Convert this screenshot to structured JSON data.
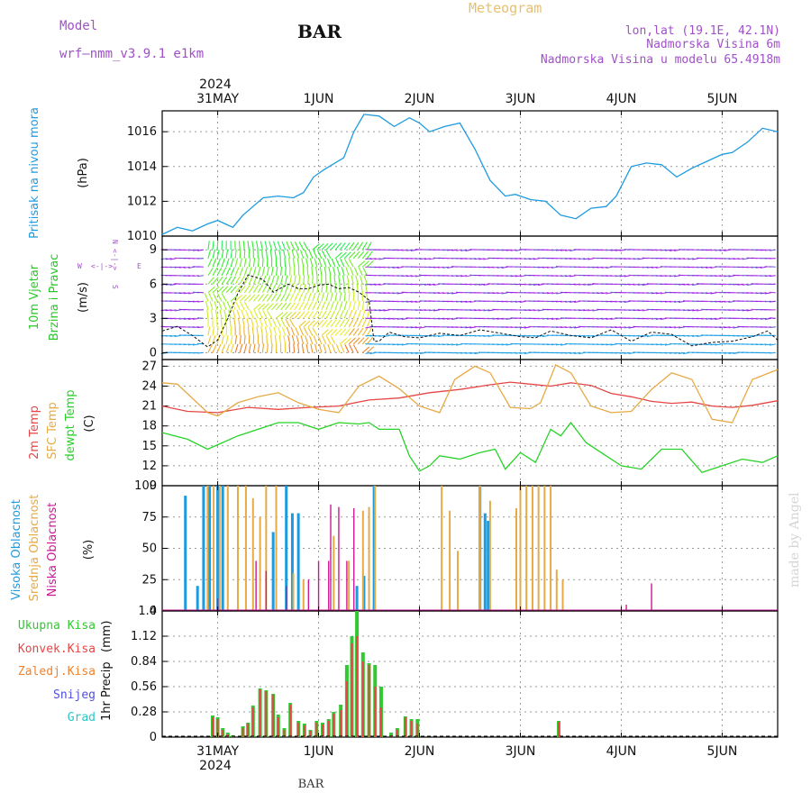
{
  "header": {
    "model_label": "Model",
    "model_name": "wrf–nmm_v3.9.1 e1km",
    "station": "BAR",
    "title": "Meteogram",
    "coords": "lon,lat (19.1E, 42.1N)",
    "elev": "Nadmorska Visina 6m",
    "elev_model": "Nadmorska Visina u modelu 65.4918m",
    "watermark": "made by Angel",
    "footer": "BAR"
  },
  "time_axis": {
    "year": "2024",
    "labels": [
      "31MAY",
      "1JUN",
      "2JUN",
      "3JUN",
      "4JUN",
      "5JUN"
    ],
    "start_day": 30.45,
    "end_day": 36.55
  },
  "colors": {
    "pressure": "#1e9be0",
    "temp2m": "#e64646",
    "sfc": "#e6aa46",
    "dewpt": "#28d228",
    "high": "#1e9be0",
    "mid": "#e6aa46",
    "low": "#cc1896",
    "total": "#32c832",
    "conv": "#e64646",
    "frz": "#f0822d",
    "snow": "#5050dc",
    "grad": "#28c8c8",
    "wind_label": "#28c828",
    "compass": "#a050c8"
  },
  "chart_data": [
    {
      "type": "line",
      "panel": "pressure",
      "ylabel_1": "Pritisak na nivou mora",
      "ylabel_2": "(hPa)",
      "ylim": [
        1010,
        1017.2
      ],
      "yticks": [
        1010,
        1012,
        1014,
        1016
      ],
      "grid": true,
      "series": [
        {
          "x": [
            30.45,
            30.6,
            30.75,
            30.9,
            31.0,
            31.15,
            31.25,
            31.45,
            31.6,
            31.75,
            31.85,
            31.95,
            32.05,
            32.25,
            32.35,
            32.45,
            32.6,
            32.75,
            32.9,
            33.0,
            33.1,
            33.25,
            33.4,
            33.55,
            33.7,
            33.85,
            33.95,
            34.1,
            34.25,
            34.4,
            34.55,
            34.7,
            34.85,
            34.95,
            35.1,
            35.25,
            35.4,
            35.55,
            35.7,
            35.85,
            36.0,
            36.1,
            36.25,
            36.4,
            36.55
          ],
          "y": [
            1010.1,
            1010.5,
            1010.3,
            1010.7,
            1010.9,
            1010.5,
            1011.2,
            1012.2,
            1012.3,
            1012.2,
            1012.5,
            1013.4,
            1013.8,
            1014.5,
            1016.0,
            1017.0,
            1016.9,
            1016.3,
            1016.8,
            1016.5,
            1016.0,
            1016.3,
            1016.5,
            1015.0,
            1013.2,
            1012.3,
            1012.4,
            1012.1,
            1012.0,
            1011.2,
            1011.0,
            1011.6,
            1011.7,
            1012.3,
            1014.0,
            1014.2,
            1014.1,
            1013.4,
            1013.9,
            1014.3,
            1014.7,
            1014.8,
            1015.4,
            1016.2,
            1016.0
          ]
        }
      ]
    },
    {
      "type": "line",
      "panel": "wind",
      "ylabel_1": "10m Vjetar",
      "ylabel_2": "Brzina i Pravac",
      "ylabel_3": "(m/s)",
      "compass": [
        "N",
        "S",
        "W",
        "E"
      ],
      "ylim": [
        -0.6,
        10.2
      ],
      "yticks": [
        0,
        3,
        6,
        9
      ],
      "grid": true,
      "series": [
        {
          "name": "speed",
          "x": [
            30.45,
            30.6,
            30.75,
            30.9,
            31.0,
            31.1,
            31.2,
            31.3,
            31.45,
            31.55,
            31.7,
            31.8,
            31.9,
            32.0,
            32.1,
            32.2,
            32.3,
            32.4,
            32.5,
            32.55,
            32.6,
            32.7,
            32.85,
            33.0,
            33.2,
            33.4,
            33.6,
            33.8,
            34.0,
            34.15,
            34.3,
            34.5,
            34.7,
            34.9,
            35.1,
            35.3,
            35.5,
            35.7,
            35.9,
            36.1,
            36.3,
            36.45,
            36.55
          ],
          "y": [
            1.9,
            2.3,
            1.5,
            0.5,
            1.1,
            3.0,
            5.2,
            6.8,
            6.4,
            5.3,
            6.0,
            5.6,
            5.6,
            5.9,
            6.0,
            5.6,
            5.7,
            5.3,
            4.6,
            1.0,
            1.0,
            1.8,
            1.4,
            1.3,
            1.7,
            1.5,
            2.0,
            1.7,
            1.4,
            1.3,
            1.9,
            1.5,
            1.3,
            2.0,
            1.0,
            1.8,
            1.6,
            0.6,
            0.9,
            1.0,
            1.4,
            1.9,
            1.1
          ]
        }
      ]
    },
    {
      "type": "line",
      "panel": "temperature",
      "ylabel_1": "2m Temp",
      "ylabel_2": "SFC Temp",
      "ylabel_3": "dewpt Temp",
      "ylabel_4": "(C)",
      "ylim": [
        9,
        28
      ],
      "yticks": [
        9,
        12,
        15,
        18,
        21,
        24,
        27
      ],
      "grid": true,
      "series": [
        {
          "name": "2m Temp",
          "x": [
            30.45,
            30.7,
            31.0,
            31.3,
            31.6,
            31.9,
            32.2,
            32.5,
            32.8,
            33.1,
            33.4,
            33.7,
            33.9,
            34.1,
            34.3,
            34.5,
            34.7,
            34.9,
            35.1,
            35.3,
            35.5,
            35.7,
            35.9,
            36.1,
            36.3,
            36.55
          ],
          "y": [
            21.0,
            20.2,
            20.0,
            20.8,
            20.5,
            20.8,
            21.0,
            21.9,
            22.2,
            23.0,
            23.5,
            24.2,
            24.6,
            24.3,
            24.0,
            24.5,
            24.1,
            22.9,
            22.4,
            21.7,
            21.4,
            21.6,
            21.0,
            20.8,
            21.1,
            21.8
          ]
        },
        {
          "name": "SFC Temp",
          "x": [
            30.45,
            30.6,
            30.9,
            31.0,
            31.2,
            31.4,
            31.6,
            31.8,
            32.0,
            32.2,
            32.4,
            32.6,
            32.8,
            33.0,
            33.2,
            33.35,
            33.55,
            33.7,
            33.9,
            34.1,
            34.2,
            34.35,
            34.5,
            34.7,
            34.9,
            35.1,
            35.3,
            35.5,
            35.7,
            35.9,
            36.1,
            36.3,
            36.55
          ],
          "y": [
            24.5,
            24.3,
            20.0,
            19.5,
            21.5,
            22.4,
            23.0,
            21.5,
            20.5,
            20.0,
            24.0,
            25.5,
            23.6,
            21.0,
            20.0,
            25.0,
            27.0,
            26.0,
            20.8,
            20.6,
            21.5,
            27.2,
            26.0,
            21.0,
            20.0,
            20.2,
            23.5,
            26.0,
            25.0,
            19.0,
            18.5,
            25.0,
            26.5
          ]
        },
        {
          "name": "dewpt Temp",
          "x": [
            30.45,
            30.7,
            30.9,
            31.05,
            31.2,
            31.4,
            31.6,
            31.8,
            32.0,
            32.2,
            32.4,
            32.5,
            32.6,
            32.8,
            32.9,
            33.0,
            33.1,
            33.2,
            33.4,
            33.6,
            33.75,
            33.85,
            34.0,
            34.15,
            34.3,
            34.4,
            34.5,
            34.65,
            34.8,
            35.0,
            35.2,
            35.4,
            35.6,
            35.8,
            36.0,
            36.2,
            36.4,
            36.55
          ],
          "y": [
            17.0,
            16.0,
            14.5,
            15.5,
            16.5,
            17.5,
            18.5,
            18.5,
            17.5,
            18.5,
            18.3,
            18.5,
            17.5,
            17.5,
            13.5,
            11.2,
            12.0,
            13.5,
            13.0,
            14.0,
            14.5,
            11.5,
            14.0,
            12.5,
            17.5,
            16.5,
            18.5,
            15.5,
            14.0,
            12.0,
            11.5,
            14.5,
            14.5,
            11.0,
            12.0,
            13.0,
            12.5,
            13.5
          ]
        }
      ]
    },
    {
      "type": "bar",
      "panel": "cloud",
      "ylabel_1": "Visoka Oblacnost",
      "ylabel_2": "Srednja Oblacnost",
      "ylabel_3": "Niska Oblacnost",
      "ylabel_4": "(%)",
      "ylim": [
        0,
        100
      ],
      "yticks": [
        0,
        25,
        50,
        75,
        100
      ],
      "grid": true,
      "series": [
        {
          "name": "high",
          "points": [
            [
              30.68,
              92
            ],
            [
              30.8,
              20
            ],
            [
              30.86,
              100
            ],
            [
              30.92,
              100
            ],
            [
              31.0,
              100
            ],
            [
              31.05,
              100
            ],
            [
              31.55,
              63
            ],
            [
              31.68,
              100
            ],
            [
              31.74,
              78
            ],
            [
              31.8,
              78
            ],
            [
              32.38,
              20
            ],
            [
              32.45,
              28
            ],
            [
              32.55,
              100
            ],
            [
              33.6,
              100
            ],
            [
              33.65,
              78
            ],
            [
              33.68,
              72
            ]
          ]
        },
        {
          "name": "mid",
          "points": [
            [
              30.9,
              100
            ],
            [
              30.96,
              100
            ],
            [
              31.02,
              100
            ],
            [
              31.1,
              100
            ],
            [
              31.2,
              100
            ],
            [
              31.28,
              100
            ],
            [
              31.35,
              90
            ],
            [
              31.42,
              75
            ],
            [
              31.48,
              100
            ],
            [
              31.58,
              100
            ],
            [
              31.75,
              30
            ],
            [
              31.85,
              25
            ],
            [
              32.15,
              60
            ],
            [
              32.3,
              40
            ],
            [
              32.44,
              80
            ],
            [
              32.5,
              83
            ],
            [
              32.56,
              100
            ],
            [
              33.22,
              100
            ],
            [
              33.3,
              80
            ],
            [
              33.38,
              48
            ],
            [
              33.6,
              100
            ],
            [
              33.7,
              88
            ],
            [
              33.96,
              82
            ],
            [
              34.0,
              100
            ],
            [
              34.06,
              100
            ],
            [
              34.12,
              100
            ],
            [
              34.18,
              100
            ],
            [
              34.24,
              100
            ],
            [
              34.3,
              100
            ],
            [
              34.36,
              33
            ],
            [
              34.42,
              25
            ]
          ]
        },
        {
          "name": "low",
          "points": [
            [
              31.0,
              10
            ],
            [
              31.38,
              40
            ],
            [
              31.48,
              32
            ],
            [
              31.68,
              20
            ],
            [
              31.9,
              25
            ],
            [
              32.0,
              40
            ],
            [
              32.1,
              40
            ],
            [
              32.12,
              85
            ],
            [
              32.2,
              83
            ],
            [
              32.28,
              40
            ],
            [
              32.35,
              82
            ],
            [
              35.05,
              5
            ],
            [
              35.3,
              22
            ]
          ]
        }
      ]
    },
    {
      "type": "bar",
      "panel": "precip",
      "ylabel_1": "1hr Precip",
      "ylabel_2": "(mm)",
      "legend": [
        "Ukupna Kisa",
        "Konvek.Kisa",
        "Zaledj.Kisa",
        "Snijeg",
        "Grad"
      ],
      "ylim": [
        0,
        1.4
      ],
      "yticks": [
        "0",
        "0.28",
        "0.56",
        "0.84",
        "1.12",
        "1.4"
      ],
      "grid": true,
      "series": [
        {
          "name": "Ukupna Kisa",
          "points": [
            [
              30.95,
              0.24
            ],
            [
              31.0,
              0.22
            ],
            [
              31.05,
              0.1
            ],
            [
              31.1,
              0.05
            ],
            [
              31.15,
              0.02
            ],
            [
              31.25,
              0.12
            ],
            [
              31.3,
              0.16
            ],
            [
              31.35,
              0.35
            ],
            [
              31.42,
              0.54
            ],
            [
              31.48,
              0.52
            ],
            [
              31.55,
              0.48
            ],
            [
              31.6,
              0.25
            ],
            [
              31.66,
              0.1
            ],
            [
              31.72,
              0.38
            ],
            [
              31.8,
              0.18
            ],
            [
              31.86,
              0.15
            ],
            [
              31.92,
              0.08
            ],
            [
              31.98,
              0.18
            ],
            [
              32.04,
              0.16
            ],
            [
              32.1,
              0.2
            ],
            [
              32.15,
              0.28
            ],
            [
              32.22,
              0.36
            ],
            [
              32.28,
              0.8
            ],
            [
              32.33,
              1.12
            ],
            [
              32.38,
              1.4
            ],
            [
              32.44,
              0.94
            ],
            [
              32.5,
              0.82
            ],
            [
              32.56,
              0.8
            ],
            [
              32.62,
              0.56
            ],
            [
              32.72,
              0.05
            ],
            [
              32.78,
              0.1
            ],
            [
              32.86,
              0.23
            ],
            [
              32.92,
              0.2
            ],
            [
              32.98,
              0.2
            ],
            [
              34.38,
              0.18
            ]
          ]
        },
        {
          "name": "Konvek.Kisa",
          "points": [
            [
              30.95,
              0.22
            ],
            [
              31.0,
              0.2
            ],
            [
              31.05,
              0.08
            ],
            [
              31.1,
              0.03
            ],
            [
              31.15,
              0.01
            ],
            [
              31.25,
              0.1
            ],
            [
              31.3,
              0.15
            ],
            [
              31.35,
              0.33
            ],
            [
              31.42,
              0.53
            ],
            [
              31.48,
              0.51
            ],
            [
              31.55,
              0.47
            ],
            [
              31.6,
              0.22
            ],
            [
              31.66,
              0.08
            ],
            [
              31.72,
              0.36
            ],
            [
              31.8,
              0.16
            ],
            [
              31.86,
              0.13
            ],
            [
              31.92,
              0.07
            ],
            [
              31.98,
              0.16
            ],
            [
              32.04,
              0.14
            ],
            [
              32.1,
              0.18
            ],
            [
              32.15,
              0.26
            ],
            [
              32.22,
              0.3
            ],
            [
              32.28,
              0.62
            ],
            [
              32.33,
              1.04
            ],
            [
              32.38,
              1.12
            ],
            [
              32.44,
              0.84
            ],
            [
              32.5,
              0.8
            ],
            [
              32.56,
              0.56
            ],
            [
              32.62,
              0.33
            ],
            [
              32.72,
              0.02
            ],
            [
              32.78,
              0.08
            ],
            [
              32.86,
              0.22
            ],
            [
              32.92,
              0.18
            ],
            [
              32.98,
              0.15
            ],
            [
              34.38,
              0.17
            ]
          ]
        }
      ]
    }
  ]
}
